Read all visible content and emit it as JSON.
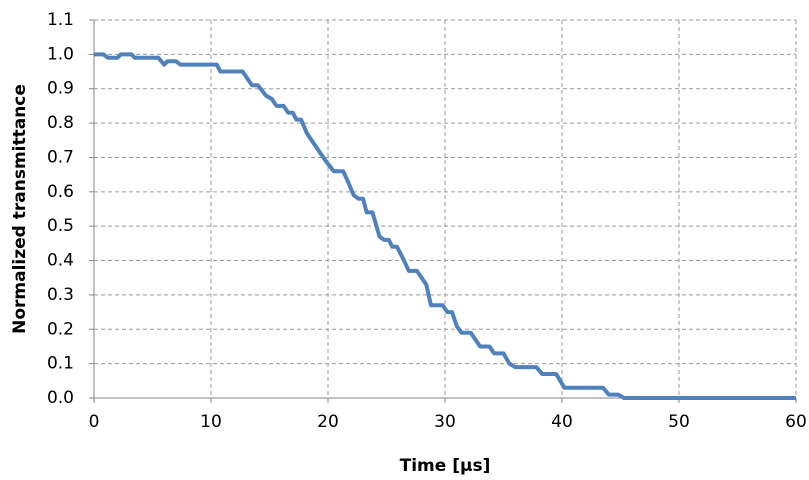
{
  "chart_data": {
    "type": "line",
    "xlabel": "Time [µs]",
    "ylabel": "Normalized transmittance",
    "x": [
      0,
      0.8,
      1.2,
      2,
      2.3,
      3.2,
      3.5,
      5.5,
      6,
      6.3,
      7,
      7.4,
      10.5,
      10.8,
      12.7,
      13.5,
      14,
      14.7,
      15.2,
      15.6,
      16.2,
      16.6,
      17,
      17.3,
      17.7,
      18.2,
      19,
      19.8,
      20.5,
      21.3,
      21.7,
      22.2,
      22.6,
      23,
      23.3,
      23.8,
      24.4,
      24.8,
      25.2,
      25.5,
      25.9,
      26.5,
      26.9,
      27.6,
      28,
      28.4,
      28.8,
      29.8,
      30.2,
      30.6,
      31,
      31.4,
      32.2,
      33,
      33.8,
      34.2,
      35,
      35.5,
      36,
      37.8,
      38.3,
      39.5,
      40.2,
      43.5,
      44,
      44.8,
      45.3,
      60
    ],
    "series": [
      {
        "name": "Normalized transmittance",
        "color": "#4f81bd",
        "values": [
          1.0,
          1.0,
          0.99,
          0.99,
          1.0,
          1.0,
          0.99,
          0.99,
          0.97,
          0.98,
          0.98,
          0.97,
          0.97,
          0.95,
          0.95,
          0.91,
          0.91,
          0.88,
          0.87,
          0.85,
          0.85,
          0.83,
          0.83,
          0.81,
          0.81,
          0.77,
          0.73,
          0.69,
          0.66,
          0.66,
          0.63,
          0.59,
          0.58,
          0.58,
          0.54,
          0.54,
          0.47,
          0.46,
          0.46,
          0.44,
          0.44,
          0.4,
          0.37,
          0.37,
          0.35,
          0.33,
          0.27,
          0.27,
          0.25,
          0.25,
          0.21,
          0.19,
          0.19,
          0.15,
          0.15,
          0.13,
          0.13,
          0.1,
          0.09,
          0.09,
          0.07,
          0.07,
          0.03,
          0.03,
          0.01,
          0.01,
          0,
          0
        ]
      }
    ],
    "xlim": [
      0,
      60
    ],
    "xticks": [
      0,
      10,
      20,
      30,
      40,
      50,
      60
    ],
    "ylim": [
      0,
      1.1
    ],
    "yticks": [
      {
        "value": 0,
        "label": "0.0"
      },
      {
        "value": 0.1,
        "label": "0.1"
      },
      {
        "value": 0.2,
        "label": "0.2"
      },
      {
        "value": 0.3,
        "label": "0.3"
      },
      {
        "value": 0.4,
        "label": "0.4"
      },
      {
        "value": 0.5,
        "label": "0.5"
      },
      {
        "value": 0.6,
        "label": "0.6"
      },
      {
        "value": 0.7,
        "label": "0.7"
      },
      {
        "value": 0.8,
        "label": "0.8"
      },
      {
        "value": 0.9,
        "label": "0.9"
      },
      {
        "value": 1.0,
        "label": "1.0"
      },
      {
        "value": 1.1,
        "label": "1.1"
      }
    ],
    "grid": true
  }
}
